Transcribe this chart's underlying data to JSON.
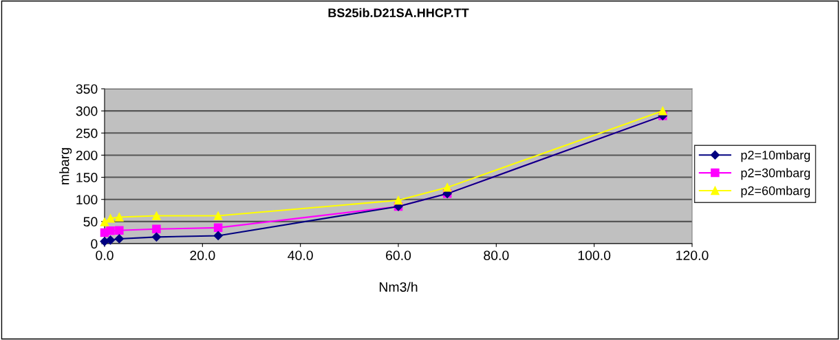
{
  "chart_data": {
    "type": "line",
    "title": "BS25ib.D21SA.HHCP.TT",
    "xlabel": "Nm3/h",
    "ylabel": "mbarg",
    "x": [
      0,
      1.2,
      3,
      10.6,
      23.2,
      60,
      70,
      114
    ],
    "series": [
      {
        "name": "p2=10mbarg",
        "color": "#000080",
        "marker": "diamond",
        "values": [
          5,
          8,
          11,
          15,
          18,
          84,
          113,
          289
        ]
      },
      {
        "name": "p2=30mbarg",
        "color": "#ff00ff",
        "marker": "square",
        "values": [
          25,
          29,
          30,
          33,
          36,
          84,
          113,
          289
        ]
      },
      {
        "name": "p2=60mbarg",
        "color": "#ffff00",
        "marker": "triangle",
        "values": [
          49,
          57,
          60,
          63,
          63,
          98,
          127,
          300
        ]
      }
    ],
    "xlim": [
      0,
      120
    ],
    "xticks": [
      {
        "value": 0,
        "label": "0.0"
      },
      {
        "value": 20,
        "label": "20.0"
      },
      {
        "value": 40,
        "label": "40.0"
      },
      {
        "value": 60,
        "label": "60.0"
      },
      {
        "value": 80,
        "label": "80.0"
      },
      {
        "value": 100,
        "label": "100.0"
      },
      {
        "value": 120,
        "label": "120.0"
      }
    ],
    "ylim": [
      0,
      350
    ],
    "yticks": [
      0,
      50,
      100,
      150,
      200,
      250,
      300,
      350
    ],
    "grid": "y",
    "legend": "right"
  }
}
